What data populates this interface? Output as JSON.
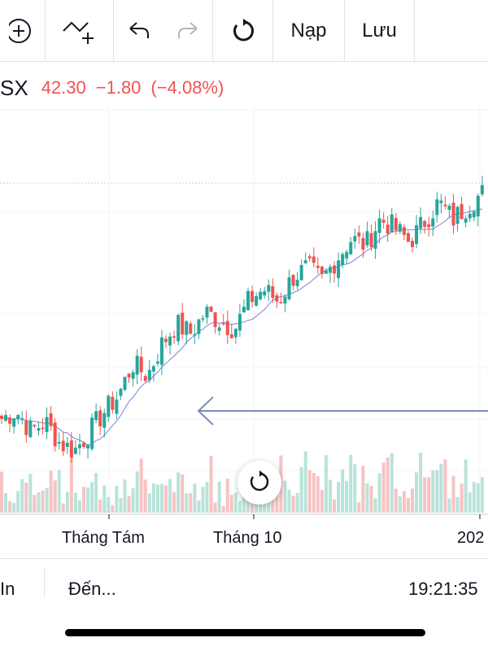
{
  "toolbar": {
    "add_indicator_icon": "plus-circle-icon",
    "compare_icon": "line-plus-icon",
    "undo_icon": "undo-icon",
    "redo_icon": "redo-icon",
    "reset_icon": "rotate-icon",
    "load_label": "Nạp",
    "save_label": "Lưu"
  },
  "legend": {
    "symbol": "SX",
    "price": "42.30",
    "change": "−1.80",
    "change_pct": "(−4.08%)"
  },
  "xaxis": {
    "labels": [
      "Tháng Tám",
      "Tháng 10",
      "202"
    ]
  },
  "bottom_bar": {
    "left_label": "In",
    "goto_label": "Đến...",
    "time": "19:21:35"
  },
  "colors": {
    "up": "#26a69a",
    "down": "#ef5350",
    "volume_up": "#b9e3d9",
    "volume_down": "#f7c3c3",
    "ma_line": "#7e7ee0",
    "arrow": "#7c8bb8"
  },
  "chart_data": {
    "type": "candlestick",
    "ma_period_hint": "moving average line overlay",
    "price_path": [
      31.0,
      31.5,
      30.2,
      30.8,
      29.4,
      28.9,
      30.1,
      31.4,
      32.5,
      34.6,
      33.8,
      35.9,
      37.2,
      36.6,
      38.0,
      37.4,
      36.9,
      38.8,
      39.5,
      38.7,
      40.3,
      40.9,
      40.1,
      41.5,
      42.8,
      42.4,
      44.1,
      43.5,
      42.6,
      43.9,
      45.2,
      44.1,
      45.0,
      45.8
    ],
    "volume_profile": "higher volume in later period"
  }
}
